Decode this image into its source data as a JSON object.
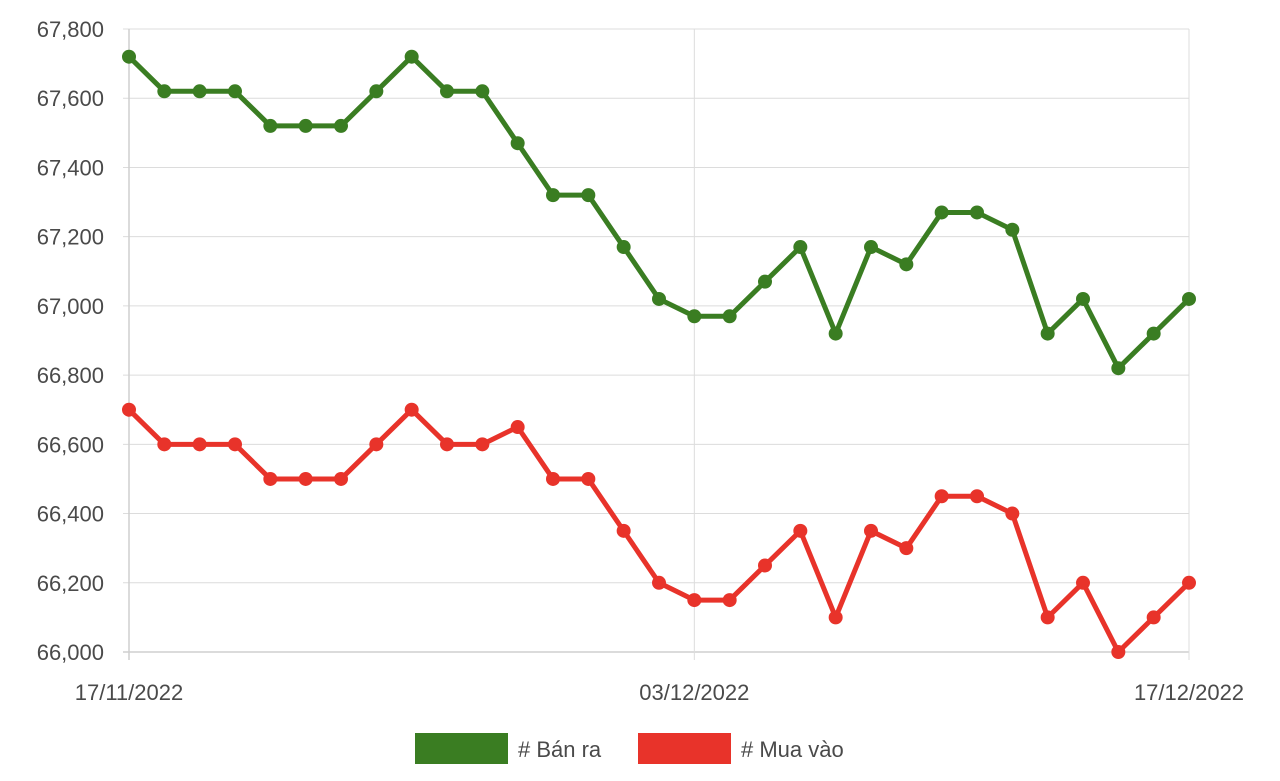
{
  "chart_data": {
    "type": "line",
    "title": "",
    "xlabel": "",
    "ylabel": "",
    "x": [
      "17/11/2022",
      "18/11/2022",
      "19/11/2022",
      "20/11/2022",
      "21/11/2022",
      "22/11/2022",
      "23/11/2022",
      "24/11/2022",
      "25/11/2022",
      "26/11/2022",
      "27/11/2022",
      "28/11/2022",
      "29/11/2022",
      "30/11/2022",
      "01/12/2022",
      "02/12/2022",
      "03/12/2022",
      "04/12/2022",
      "05/12/2022",
      "06/12/2022",
      "07/12/2022",
      "08/12/2022",
      "09/12/2022",
      "10/12/2022",
      "11/12/2022",
      "12/12/2022",
      "13/12/2022",
      "14/12/2022",
      "15/12/2022",
      "16/12/2022",
      "17/12/2022"
    ],
    "xlim": [
      "17/11/2022",
      "17/12/2022"
    ],
    "x_tick_labels": [
      "17/11/2022",
      "03/12/2022",
      "17/12/2022"
    ],
    "ylim": [
      66000,
      67800
    ],
    "y_tick_labels": [
      "66,000",
      "66,200",
      "66,400",
      "66,600",
      "66,800",
      "67,000",
      "67,200",
      "67,400",
      "67,600",
      "67,800"
    ],
    "y_ticks": [
      66000,
      66200,
      66400,
      66600,
      66800,
      67000,
      67200,
      67400,
      67600,
      67800
    ],
    "grid": true,
    "legend_position": "bottom-center",
    "series": [
      {
        "name": "# Bán ra",
        "color": "#3a7d22",
        "values": [
          67720,
          67620,
          67620,
          67620,
          67520,
          67520,
          67520,
          67620,
          67720,
          67620,
          67620,
          67470,
          67320,
          67320,
          67170,
          67020,
          66970,
          66970,
          67070,
          67170,
          66920,
          67170,
          67120,
          67270,
          67270,
          67220,
          66920,
          67020,
          66820,
          66920,
          67020
        ]
      },
      {
        "name": "# Mua vào",
        "color": "#e8332a",
        "values": [
          66700,
          66600,
          66600,
          66600,
          66500,
          66500,
          66500,
          66600,
          66700,
          66600,
          66600,
          66650,
          66500,
          66500,
          66350,
          66200,
          66150,
          66150,
          66250,
          66350,
          66100,
          66350,
          66300,
          66450,
          66450,
          66400,
          66100,
          66200,
          66000,
          66100,
          66200
        ]
      }
    ]
  }
}
